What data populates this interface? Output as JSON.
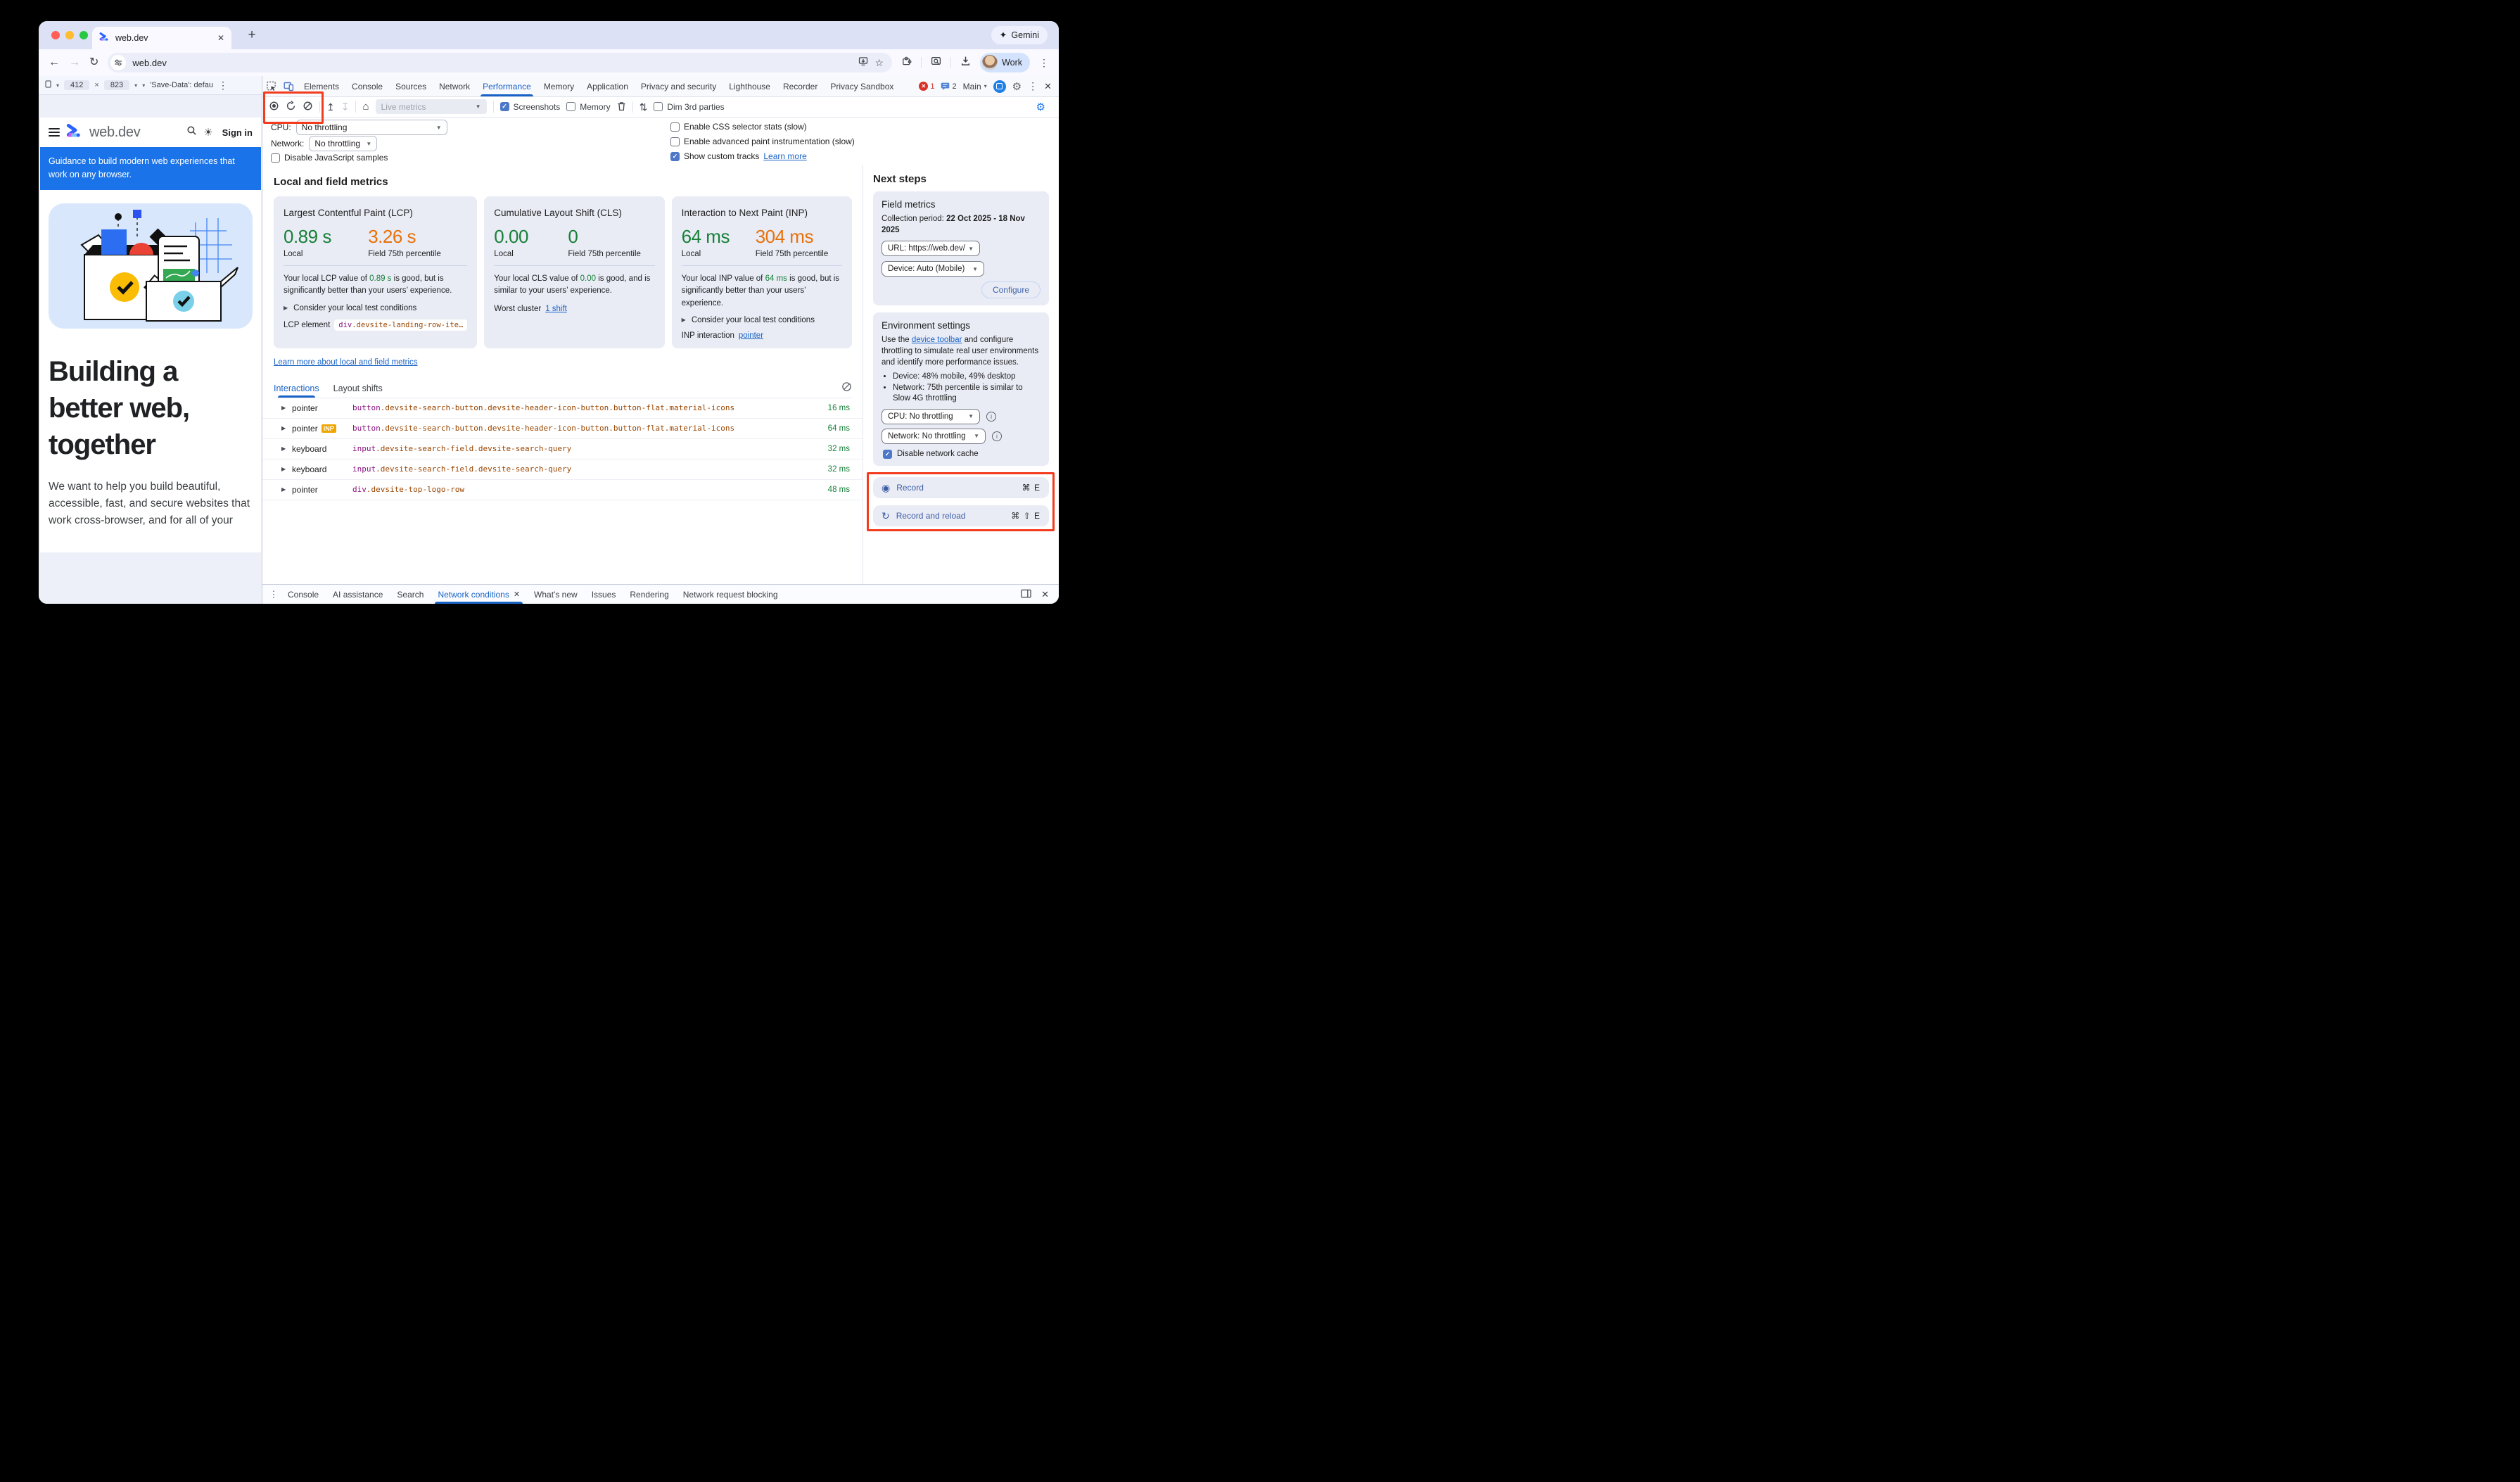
{
  "browser": {
    "tab_title": "web.dev",
    "gemini_label": "Gemini",
    "url": "web.dev",
    "profile_label": "Work"
  },
  "device_toolbar": {
    "width": "412",
    "times": "×",
    "height": "823",
    "save_data": "'Save-Data': defau"
  },
  "devtools": {
    "tabs": [
      "Elements",
      "Console",
      "Sources",
      "Network",
      "Performance",
      "Memory",
      "Application",
      "Privacy and security",
      "Lighthouse",
      "Recorder",
      "Privacy Sandbox"
    ],
    "active_tab": "Performance",
    "error_count": "1",
    "message_count": "2",
    "main_label": "Main"
  },
  "perf_toolbar": {
    "live_metrics": "Live metrics",
    "screenshots_label": "Screenshots",
    "memory_label": "Memory",
    "dim_label": "Dim 3rd parties"
  },
  "capture_settings": {
    "cpu_label": "CPU:",
    "cpu_value": "No throttling",
    "network_label": "Network:",
    "network_value": "No throttling",
    "disable_js": "Disable JavaScript samples",
    "css_stats": "Enable CSS selector stats (slow)",
    "paint_instrumentation": "Enable advanced paint instrumentation (slow)",
    "custom_tracks": "Show custom tracks",
    "learn_more": "Learn more"
  },
  "metrics": {
    "section_title": "Local and field metrics",
    "local_label": "Local",
    "field_label": "Field 75th percentile",
    "cards": [
      {
        "title": "Largest Contentful Paint (LCP)",
        "local_value": "0.89 s",
        "local_color": "#188038",
        "field_value": "3.26 s",
        "field_color": "#e8710a",
        "desc_prefix": "Your local LCP value of ",
        "desc_value": "0.89 s",
        "desc_suffix": " is good, but is significantly better than your users’ experience.",
        "expand_label": "Consider your local test conditions",
        "footer_label": "LCP element",
        "footer_type": "code",
        "footer_code_tag": "div",
        "footer_code_rest": ".devsite-landing-row-ite…"
      },
      {
        "title": "Cumulative Layout Shift (CLS)",
        "local_value": "0.00",
        "local_color": "#188038",
        "field_value": "0",
        "field_color": "#188038",
        "desc_prefix": "Your local CLS value of ",
        "desc_value": "0.00",
        "desc_suffix": " is good, and is similar to your users’ experience.",
        "expand_label": null,
        "footer_label": "Worst cluster",
        "footer_type": "link",
        "footer_link": "1 shift"
      },
      {
        "title": "Interaction to Next Paint (INP)",
        "local_value": "64 ms",
        "local_color": "#188038",
        "field_value": "304 ms",
        "field_color": "#e8710a",
        "desc_prefix": "Your local INP value of ",
        "desc_value": "64 ms",
        "desc_suffix": " is good, but is significantly better than your users’ experience.",
        "expand_label": "Consider your local test conditions",
        "footer_label": "INP interaction",
        "footer_type": "link",
        "footer_link": "pointer"
      }
    ],
    "learn_more_link": "Learn more about local and field metrics"
  },
  "interactions": {
    "tabs": [
      "Interactions",
      "Layout shifts"
    ],
    "active_tab": "Interactions",
    "rows": [
      {
        "type": "pointer",
        "badge": null,
        "sel_tag": "button",
        "sel_rest": ".devsite-search-button.devsite-header-icon-button.button-flat.material-icons",
        "duration": "16 ms"
      },
      {
        "type": "pointer",
        "badge": "INP",
        "sel_tag": "button",
        "sel_rest": ".devsite-search-button.devsite-header-icon-button.button-flat.material-icons",
        "duration": "64 ms"
      },
      {
        "type": "keyboard",
        "badge": null,
        "sel_tag": "input",
        "sel_rest": ".devsite-search-field.devsite-search-query",
        "duration": "32 ms"
      },
      {
        "type": "keyboard",
        "badge": null,
        "sel_tag": "input",
        "sel_rest": ".devsite-search-field.devsite-search-query",
        "duration": "32 ms"
      },
      {
        "type": "pointer",
        "badge": null,
        "sel_tag": "div",
        "sel_rest": ".devsite-top-logo-row",
        "duration": "48 ms"
      }
    ]
  },
  "next_steps": {
    "title": "Next steps",
    "field_metrics": {
      "title": "Field metrics",
      "period_label": "Collection period: ",
      "period_value": "22 Oct 2025 - 18 Nov 2025",
      "url_value": "URL: https://web.dev/",
      "device_value": "Device: Auto (Mobile)",
      "configure_label": "Configure"
    },
    "environment": {
      "title": "Environment settings",
      "desc_prefix": "Use the ",
      "desc_link": "device toolbar",
      "desc_suffix": " and configure throttling to simulate real user environments and identify more performance issues.",
      "bullets": [
        "Device: 48% mobile, 49% desktop",
        "Network: 75th percentile is similar to Slow 4G throttling"
      ],
      "cpu_value": "CPU: No throttling",
      "network_value": "Network: No throttling",
      "cache_label": "Disable network cache"
    },
    "record_label": "Record",
    "record_shortcut": "⌘ E",
    "record_reload_label": "Record and reload",
    "record_reload_shortcut": "⌘ ⇧ E"
  },
  "drawer": {
    "tabs": [
      "Console",
      "AI assistance",
      "Search",
      "Network conditions",
      "What's new",
      "Issues",
      "Rendering",
      "Network request blocking"
    ],
    "active_tab": "Network conditions"
  },
  "page": {
    "brand": "web.dev",
    "sign_in": "Sign in",
    "banner": "Guidance to build modern web experiences that work on any browser.",
    "headline": "Building a better web, together",
    "paragraph": "We want to help you build beautiful, accessible, fast, and secure websites that work cross-browser, and for all of your"
  },
  "icons": {
    "back": "←",
    "forward": "→",
    "reload": "↻",
    "star": "☆",
    "plus": "+",
    "close": "✕",
    "gemini": "✦",
    "sun": "☀",
    "home": "⌂",
    "upload": "↥",
    "download_small": "↧",
    "updown": "⇅",
    "gear": "⚙",
    "record": "◉",
    "record_reload": "↻",
    "clear": "⊘",
    "block": "⊘",
    "caret": "▾",
    "triangle": "▶",
    "kebab_v": "⋮",
    "kebab": "⋮"
  },
  "colors": {
    "accent_blue": "#1a73e8",
    "devtools_blue": "#1a63c6",
    "good_green": "#188038",
    "warn_orange": "#e8710a",
    "highlight_red": "#f33b1e",
    "inp_badge_yellow": "#f0a500",
    "record_blue": "#3e5da6",
    "selector_tag": "#881280",
    "selector_class": "#994500"
  }
}
